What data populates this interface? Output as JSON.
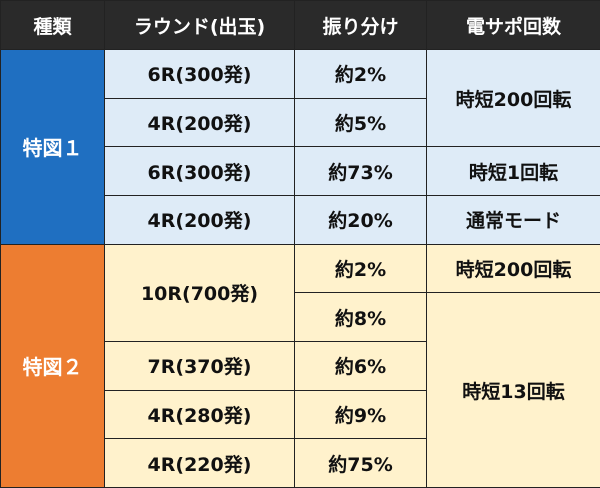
{
  "headers": {
    "type": "種類",
    "round": "ラウンド(出玉)",
    "dist": "振り分け",
    "support": "電サポ回数"
  },
  "groups": [
    {
      "label": "特図１",
      "rows": [
        {
          "round": "6R(300発)",
          "dist": "約2%",
          "support": "時短200回転"
        },
        {
          "round": "4R(200発)",
          "dist": "約5%"
        },
        {
          "round": "6R(300発)",
          "dist": "約73%",
          "support": "時短1回転"
        },
        {
          "round": "4R(200発)",
          "dist": "約20%",
          "support": "通常モード"
        }
      ]
    },
    {
      "label": "特図２",
      "rows": [
        {
          "round": "10R(700発)",
          "dist": "約2%",
          "support": "時短200回転"
        },
        {
          "dist": "約8%",
          "support": "時短13回転"
        },
        {
          "round": "7R(370発)",
          "dist": "約6%"
        },
        {
          "round": "4R(280発)",
          "dist": "約9%"
        },
        {
          "round": "4R(220発)",
          "dist": "約75%"
        }
      ]
    }
  ],
  "colors": {
    "header_bg": "#2a2a2a",
    "group1_label_bg": "#1f6fc1",
    "group1_cell_bg": "#deebf7",
    "group2_label_bg": "#ed7d31",
    "group2_cell_bg": "#fff2cc"
  }
}
